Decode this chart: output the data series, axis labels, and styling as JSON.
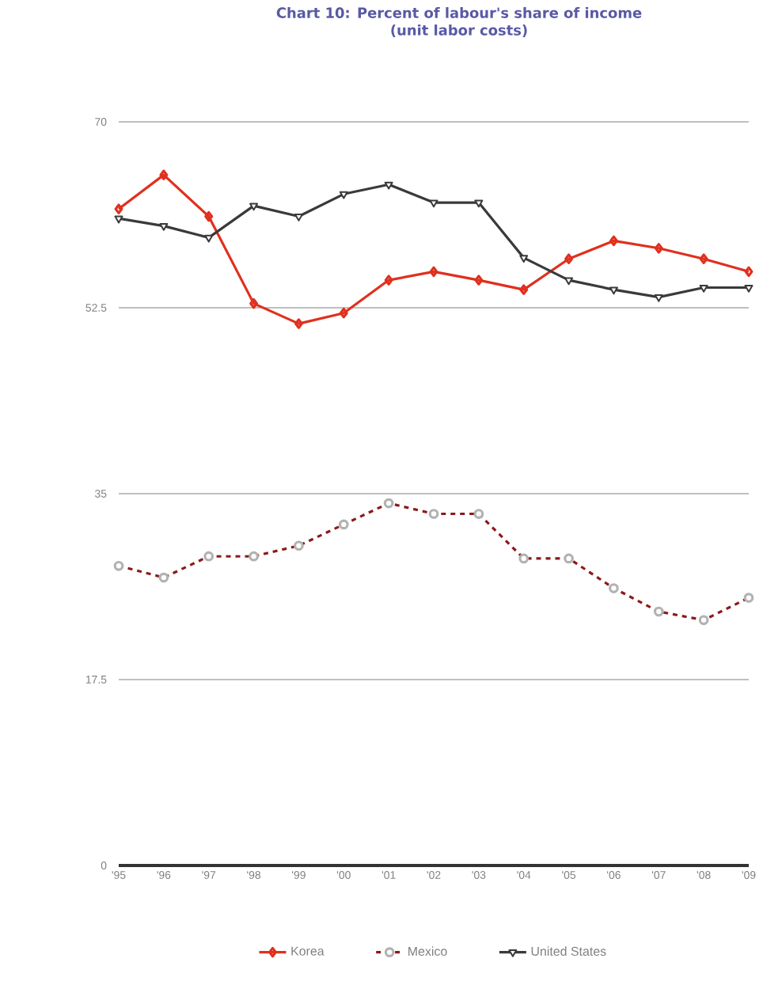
{
  "chart_data": {
    "type": "line",
    "title": "Chart 10: Percent of labour's share of income",
    "subtitle": "(unit labor costs)",
    "categories": [
      "'95",
      "'96",
      "'97",
      "'98",
      "'99",
      "'00",
      "'01",
      "'02",
      "'03",
      "'04",
      "'05",
      "'06",
      "'07",
      "'08",
      "'09"
    ],
    "series": [
      {
        "name": "Korea",
        "color": "#e0301e",
        "marker": "diamond",
        "line_style": "solid",
        "values": [
          61.8,
          65,
          61.1,
          52.9,
          51,
          52,
          55.1,
          55.9,
          55.1,
          54.2,
          57.1,
          58.8,
          58.1,
          57.1,
          55.9
        ]
      },
      {
        "name": "Mexico",
        "color": "#8b1a1a",
        "marker": "circle",
        "line_style": "dashed",
        "values": [
          28.2,
          27.1,
          29.1,
          29.1,
          30.1,
          32.1,
          34.1,
          33.1,
          33.1,
          28.9,
          28.9,
          26.1,
          23.9,
          23.1,
          25.2
        ]
      },
      {
        "name": "United States",
        "color": "#3a3a3a",
        "marker": "triangle",
        "line_style": "solid",
        "values": [
          60.9,
          60.2,
          59.1,
          62.1,
          61.1,
          63.2,
          64.1,
          62.4,
          62.4,
          57.2,
          55.1,
          54.2,
          53.5,
          54.4,
          54.4
        ]
      }
    ],
    "ylim": [
      0,
      70
    ],
    "yticks": [
      0,
      17.5,
      35,
      52.5,
      70
    ],
    "grid": "y",
    "legend": "bottom"
  }
}
